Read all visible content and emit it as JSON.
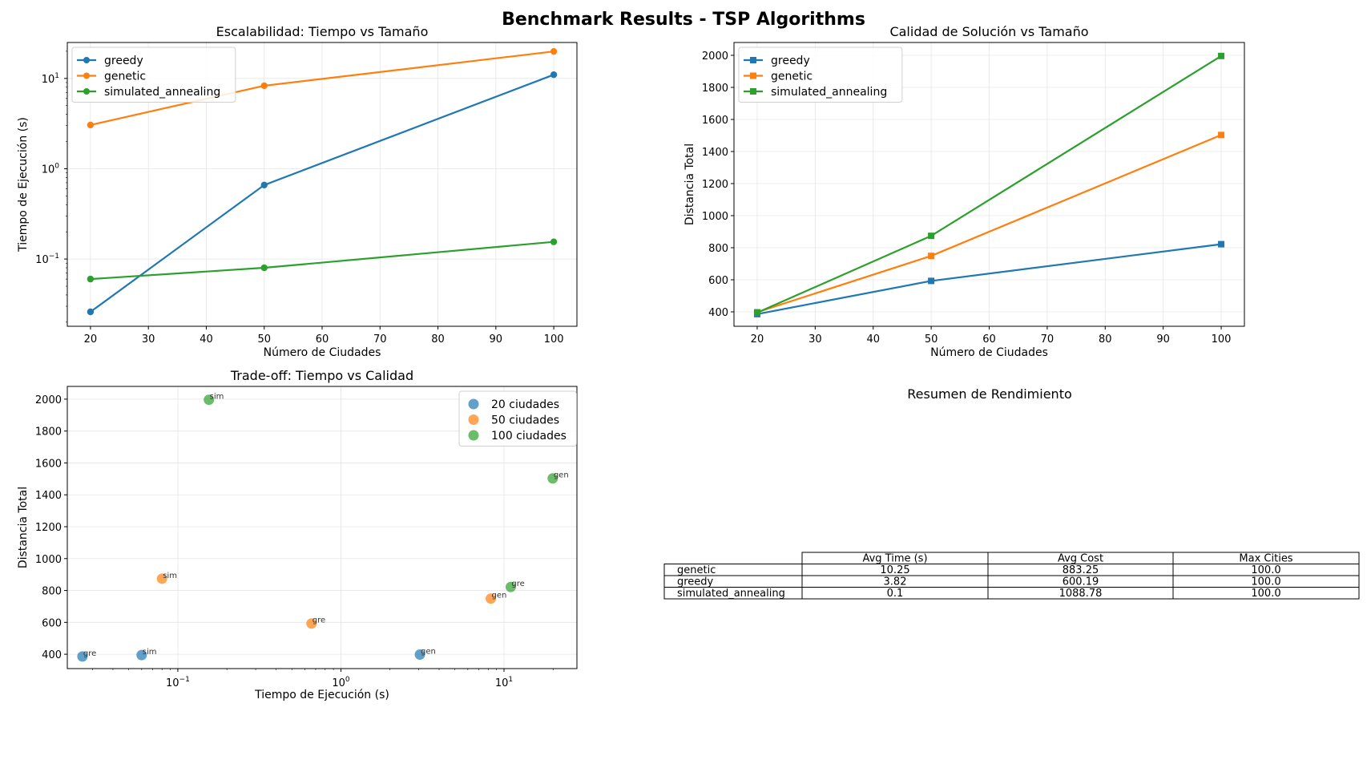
{
  "suptitle": "Benchmark Results - TSP Algorithms",
  "colors": {
    "blue": "#1f77b4",
    "orange": "#ff7f0e",
    "green": "#2ca02c"
  },
  "chart_data": [
    {
      "id": "scalability",
      "type": "line",
      "title": "Escalabilidad: Tiempo vs Tamaño",
      "xlabel": "Número de Ciudades",
      "ylabel": "Tiempo de Ejecución (s)",
      "yscale": "log",
      "xlim": [
        16,
        104
      ],
      "ylim": [
        0.018,
        25
      ],
      "xticks": [
        20,
        30,
        40,
        50,
        60,
        70,
        80,
        90,
        100
      ],
      "yticks": [
        0.1,
        1,
        10
      ],
      "yticklabels": [
        [
          "10",
          "−1"
        ],
        [
          "10",
          "0"
        ],
        [
          "10",
          "1"
        ]
      ],
      "grid": true,
      "legend": "upper-left",
      "marker": "circle",
      "x": [
        20,
        50,
        100
      ],
      "series": [
        {
          "name": "greedy",
          "color": "#1f77b4",
          "values": [
            0.026,
            0.66,
            11.0
          ]
        },
        {
          "name": "genetic",
          "color": "#ff7f0e",
          "values": [
            3.05,
            8.3,
            19.9
          ]
        },
        {
          "name": "simulated_annealing",
          "color": "#2ca02c",
          "values": [
            0.06,
            0.08,
            0.155
          ]
        }
      ]
    },
    {
      "id": "quality",
      "type": "line",
      "title": "Calidad de Solución vs Tamaño",
      "xlabel": "Número de Ciudades",
      "ylabel": "Distancia Total",
      "yscale": "linear",
      "xlim": [
        16,
        104
      ],
      "ylim": [
        310,
        2080
      ],
      "xticks": [
        20,
        30,
        40,
        50,
        60,
        70,
        80,
        90,
        100
      ],
      "yticks": [
        400,
        600,
        800,
        1000,
        1200,
        1400,
        1600,
        1800,
        2000
      ],
      "grid": true,
      "legend": "upper-left",
      "marker": "square",
      "x": [
        20,
        50,
        100
      ],
      "series": [
        {
          "name": "greedy",
          "color": "#1f77b4",
          "values": [
            386,
            593,
            822
          ]
        },
        {
          "name": "genetic",
          "color": "#ff7f0e",
          "values": [
            398,
            749,
            1503
          ]
        },
        {
          "name": "simulated_annealing",
          "color": "#2ca02c",
          "values": [
            395,
            874,
            1996
          ]
        }
      ]
    },
    {
      "id": "tradeoff",
      "type": "scatter",
      "title": "Trade-off: Tiempo vs Calidad",
      "xlabel": "Tiempo de Ejecución (s)",
      "ylabel": "Distancia Total",
      "xscale": "log",
      "xlim": [
        0.021,
        28
      ],
      "ylim": [
        310,
        2080
      ],
      "xticks": [
        0.1,
        1,
        10
      ],
      "xticklabels": [
        [
          "10",
          "−1"
        ],
        [
          "10",
          "0"
        ],
        [
          "10",
          "1"
        ]
      ],
      "yticks": [
        400,
        600,
        800,
        1000,
        1200,
        1400,
        1600,
        1800,
        2000
      ],
      "grid": true,
      "legend": "upper-right",
      "series": [
        {
          "name": "20 ciudades",
          "color": "#1f77b4",
          "points": [
            {
              "x": 0.026,
              "y": 386,
              "label": "gre"
            },
            {
              "x": 0.06,
              "y": 395,
              "label": "sim"
            },
            {
              "x": 3.05,
              "y": 398,
              "label": "gen"
            }
          ]
        },
        {
          "name": "50 ciudades",
          "color": "#ff7f0e",
          "points": [
            {
              "x": 0.66,
              "y": 593,
              "label": "gre"
            },
            {
              "x": 0.08,
              "y": 874,
              "label": "sim"
            },
            {
              "x": 8.3,
              "y": 749,
              "label": "gen"
            }
          ]
        },
        {
          "name": "100 ciudades",
          "color": "#2ca02c",
          "points": [
            {
              "x": 11.0,
              "y": 822,
              "label": "gre"
            },
            {
              "x": 0.155,
              "y": 1996,
              "label": "sim"
            },
            {
              "x": 19.9,
              "y": 1503,
              "label": "gen"
            }
          ]
        }
      ]
    },
    {
      "id": "summary",
      "type": "table",
      "title": "Resumen de Rendimiento",
      "columns": [
        "Avg Time (s)",
        "Avg Cost",
        "Max Cities"
      ],
      "rows": [
        {
          "label": "genetic",
          "values": [
            "10.25",
            "883.25",
            "100.0"
          ]
        },
        {
          "label": "greedy",
          "values": [
            "3.82",
            "600.19",
            "100.0"
          ]
        },
        {
          "label": "simulated_annealing",
          "values": [
            "0.1",
            "1088.78",
            "100.0"
          ]
        }
      ]
    }
  ]
}
